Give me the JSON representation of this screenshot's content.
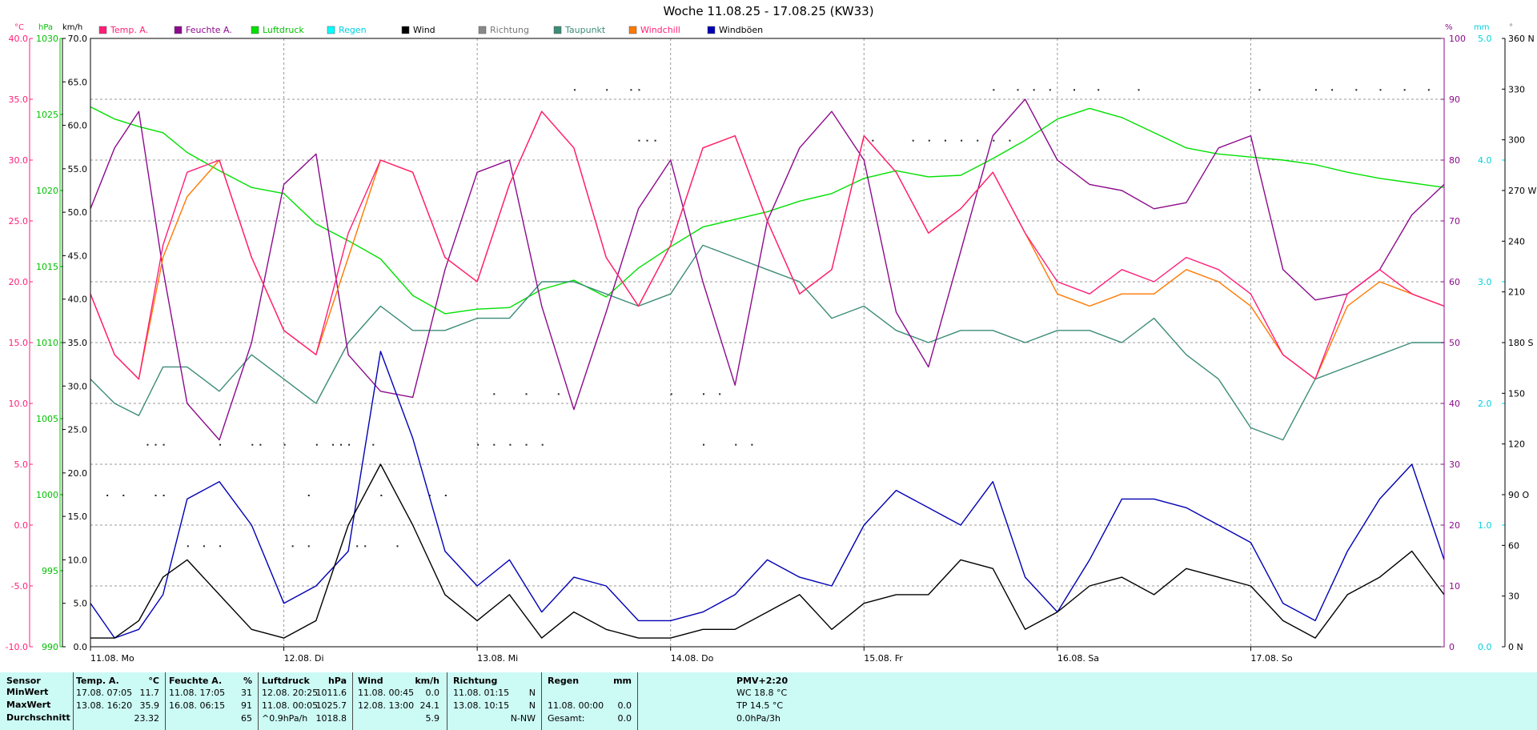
{
  "chart_data": {
    "type": "line",
    "title": "Woche 11.08.25 - 17.08.25 (KW33)",
    "legend_placement": "top",
    "x_labels": [
      "11.08.  Mo",
      "12.08.  Di",
      "13.08.  Mi",
      "14.08.  Do",
      "15.08.  Fr",
      "16.08.  Sa",
      "17.08.  So"
    ],
    "axes": {
      "temp": {
        "unit": "°C",
        "ticks": [
          "40.0",
          "35.0",
          "30.0",
          "25.0",
          "20.0",
          "15.0",
          "10.0",
          "5.0",
          "0.0",
          "-5.0",
          "-10.0"
        ],
        "range": [
          -10,
          40
        ]
      },
      "pressure": {
        "unit": "hPa",
        "ticks": [
          "1030",
          "1025",
          "1020",
          "1015",
          "1010",
          "1005",
          "1000",
          "995",
          "990"
        ],
        "range": [
          990,
          1030
        ]
      },
      "wind": {
        "unit": "km/h",
        "ticks": [
          "70.0",
          "65.0",
          "60.0",
          "55.0",
          "50.0",
          "45.0",
          "40.0",
          "35.0",
          "30.0",
          "25.0",
          "20.0",
          "15.0",
          "10.0",
          "5.0",
          "0.0"
        ],
        "range": [
          0,
          70
        ]
      },
      "humidity": {
        "unit": "%",
        "ticks": [
          "100",
          "90",
          "80",
          "70",
          "60",
          "50",
          "40",
          "30",
          "20",
          "10",
          "0"
        ],
        "range": [
          0,
          100
        ]
      },
      "rain": {
        "unit": "mm",
        "ticks": [
          "5.0",
          "4.0",
          "3.0",
          "2.0",
          "1.0",
          "0.0"
        ],
        "range": [
          0,
          5
        ]
      },
      "direction": {
        "unit": "°",
        "ticks": [
          "360 N",
          "330",
          "300",
          "270 W",
          "240",
          "210",
          "180 S",
          "150",
          "120",
          "90 O",
          "60",
          "30",
          "0 N"
        ],
        "range": [
          0,
          360
        ]
      }
    },
    "series": [
      {
        "name": "Temp. A.",
        "color": "#ff1e78",
        "axis": "temp",
        "hours": [
          0,
          3,
          6,
          9,
          12,
          16,
          20,
          24,
          28,
          32,
          36,
          40,
          44,
          48,
          52,
          56,
          60,
          64,
          68,
          72,
          76,
          80,
          84,
          88,
          92,
          96,
          100,
          104,
          108,
          112,
          116,
          120,
          124,
          128,
          132,
          136,
          140,
          144,
          148,
          152,
          156,
          160,
          164,
          168
        ],
        "values": [
          19,
          14,
          12,
          23,
          29,
          30,
          22,
          16,
          14,
          24,
          30,
          29,
          22,
          20,
          28,
          34,
          31,
          22,
          18,
          23,
          31,
          32,
          25,
          19,
          21,
          32,
          29,
          24,
          26,
          29,
          24,
          20,
          19,
          21,
          20,
          22,
          21,
          19,
          14,
          12,
          19,
          21,
          19,
          18
        ]
      },
      {
        "name": "Feuchte A.",
        "color": "#8c0a8c",
        "axis": "humidity",
        "hours": [
          0,
          3,
          6,
          9,
          12,
          16,
          20,
          24,
          28,
          32,
          36,
          40,
          44,
          48,
          52,
          56,
          60,
          64,
          68,
          72,
          76,
          80,
          84,
          88,
          92,
          96,
          100,
          104,
          108,
          112,
          116,
          120,
          124,
          128,
          132,
          136,
          140,
          144,
          148,
          152,
          156,
          160,
          164,
          168
        ],
        "values": [
          72,
          82,
          88,
          62,
          40,
          34,
          50,
          76,
          81,
          48,
          42,
          41,
          62,
          78,
          80,
          56,
          39,
          55,
          72,
          80,
          60,
          43,
          70,
          82,
          88,
          80,
          55,
          46,
          65,
          84,
          90,
          80,
          76,
          75,
          72,
          73,
          82,
          84,
          62,
          57,
          58,
          62,
          71,
          76
        ]
      },
      {
        "name": "Luftdruck",
        "color": "#00e000",
        "axis": "pressure",
        "hours": [
          0,
          3,
          6,
          9,
          12,
          16,
          20,
          24,
          28,
          32,
          36,
          40,
          44,
          48,
          52,
          56,
          60,
          64,
          68,
          72,
          76,
          80,
          84,
          88,
          92,
          96,
          100,
          104,
          108,
          112,
          116,
          120,
          124,
          128,
          132,
          136,
          140,
          144,
          148,
          152,
          156,
          160,
          164,
          168
        ],
        "values": [
          1025.5,
          1024.7,
          1024.2,
          1023.8,
          1022.5,
          1021.3,
          1020.2,
          1019.8,
          1017.8,
          1016.7,
          1015.5,
          1013.1,
          1011.9,
          1012.2,
          1012.3,
          1013.5,
          1014.1,
          1013.0,
          1014.9,
          1016.3,
          1017.6,
          1018.1,
          1018.6,
          1019.3,
          1019.8,
          1020.8,
          1021.3,
          1020.9,
          1021.0,
          1022.1,
          1023.3,
          1024.7,
          1025.4,
          1024.8,
          1023.8,
          1022.8,
          1022.4,
          1022.2,
          1022.0,
          1021.7,
          1021.2,
          1020.8,
          1020.5,
          1020.2
        ]
      },
      {
        "name": "Taupunkt",
        "color": "#3c8c78",
        "axis": "temp",
        "hours": [
          0,
          3,
          6,
          9,
          12,
          16,
          20,
          24,
          28,
          32,
          36,
          40,
          44,
          48,
          52,
          56,
          60,
          64,
          68,
          72,
          76,
          80,
          84,
          88,
          92,
          96,
          100,
          104,
          108,
          112,
          116,
          120,
          124,
          128,
          132,
          136,
          140,
          144,
          148,
          152,
          156,
          160,
          164,
          168
        ],
        "values": [
          12,
          10,
          9,
          13,
          13,
          11,
          14,
          12,
          10,
          15,
          18,
          16,
          16,
          17,
          17,
          20,
          20,
          19,
          18,
          19,
          23,
          22,
          21,
          20,
          17,
          18,
          16,
          15,
          16,
          16,
          15,
          16,
          16,
          15,
          17,
          14,
          12,
          8,
          7,
          12,
          13,
          14,
          15,
          15
        ]
      },
      {
        "name": "Windchill",
        "color": "#ff7800",
        "axis": "temp",
        "hours": [
          0,
          3,
          6,
          9,
          12,
          16,
          20,
          24,
          28,
          32,
          36,
          40,
          44,
          48,
          52,
          56,
          60,
          64,
          68,
          72,
          76,
          80,
          84,
          88,
          92,
          96,
          100,
          104,
          108,
          112,
          116,
          120,
          124,
          128,
          132,
          136,
          140,
          144,
          148,
          152,
          156,
          160,
          164,
          168
        ],
        "values": [
          19,
          14,
          12,
          22,
          27,
          30,
          22,
          16,
          14,
          22,
          30,
          29,
          22,
          20,
          28,
          34,
          31,
          22,
          18,
          23,
          31,
          32,
          25,
          19,
          21,
          32,
          29,
          24,
          26,
          29,
          24,
          19,
          18,
          19,
          19,
          21,
          20,
          18,
          14,
          12,
          18,
          20,
          19,
          18
        ]
      },
      {
        "name": "Wind",
        "color": "#000000",
        "axis": "wind",
        "hours": [
          0,
          3,
          6,
          9,
          12,
          16,
          20,
          24,
          28,
          32,
          36,
          40,
          44,
          48,
          52,
          56,
          60,
          64,
          68,
          72,
          76,
          80,
          84,
          88,
          92,
          96,
          100,
          104,
          108,
          112,
          116,
          120,
          124,
          128,
          132,
          136,
          140,
          144,
          148,
          152,
          156,
          160,
          164,
          168
        ],
        "values": [
          1,
          1,
          3,
          8,
          10,
          6,
          2,
          1,
          3,
          14,
          21,
          14,
          6,
          3,
          6,
          1,
          4,
          2,
          1,
          1,
          2,
          2,
          4,
          6,
          2,
          5,
          6,
          6,
          10,
          9,
          2,
          4,
          7,
          8,
          6,
          9,
          8,
          7,
          3,
          1,
          6,
          8,
          11,
          6
        ]
      },
      {
        "name": "Windböen",
        "color": "#0000b4",
        "axis": "wind",
        "hours": [
          0,
          3,
          6,
          9,
          12,
          16,
          20,
          24,
          28,
          32,
          36,
          40,
          44,
          48,
          52,
          56,
          60,
          64,
          68,
          72,
          76,
          80,
          84,
          88,
          92,
          96,
          100,
          104,
          108,
          112,
          116,
          120,
          124,
          128,
          132,
          136,
          140,
          144,
          148,
          152,
          156,
          160,
          164,
          168
        ],
        "values": [
          5,
          1,
          2,
          6,
          17,
          19,
          14,
          5,
          7,
          11,
          34,
          24,
          11,
          7,
          10,
          4,
          8,
          7,
          3,
          3,
          4,
          6,
          10,
          8,
          7,
          14,
          18,
          16,
          14,
          19,
          8,
          4,
          10,
          17,
          17,
          16,
          14,
          12,
          5,
          3,
          11,
          17,
          21,
          10
        ]
      }
    ],
    "legend": [
      {
        "name": "Temp. A.",
        "color": "#ff1e78",
        "text_color": "#ff1e78"
      },
      {
        "name": "Feuchte A.",
        "color": "#8c0a8c",
        "text_color": "#8c0a8c"
      },
      {
        "name": "Luftdruck",
        "color": "#00e000",
        "text_color": "#00c000"
      },
      {
        "name": "Regen",
        "color": "#00ffff",
        "text_color": "#00d0e0"
      },
      {
        "name": "Wind",
        "color": "#000000",
        "text_color": "#000000"
      },
      {
        "name": "Richtung",
        "color": "#888888",
        "text_color": "#777777"
      },
      {
        "name": "Taupunkt",
        "color": "#3c8c78",
        "text_color": "#3c8c78"
      },
      {
        "name": "Windchill",
        "color": "#ff7800",
        "text_color": "#ff1e78"
      },
      {
        "name": "Windböen",
        "color": "#0000b4",
        "text_color": "#000000"
      }
    ]
  },
  "footer": {
    "row_labels": [
      "Sensor",
      "MinWert",
      "MaxWert",
      "Durchschnitt"
    ],
    "temp": {
      "header": "Temp. A.",
      "unit": "°C",
      "min_time": "17.08.  07:05",
      "min_val": "11.7",
      "max_time": "13.08.  16:20",
      "max_val": "35.9",
      "avg": "23.32"
    },
    "humidity": {
      "header": "Feuchte A.",
      "unit": "%",
      "min_time": "11.08.  17:05",
      "min_val": "31",
      "max_time": "16.08.  06:15",
      "max_val": "91",
      "avg": "65"
    },
    "pressure": {
      "header": "Luftdruck",
      "unit": "hPa",
      "min_time": "12.08.  20:25",
      "min_val": "1011.6",
      "max_time": "11.08.  00:05",
      "max_val": "1025.7",
      "trend": "^0.9hPa/h",
      "avg": "1018.8"
    },
    "wind": {
      "header": "Wind",
      "unit": "km/h",
      "min_time": "11.08.  00:45",
      "min_val": "0.0",
      "max_time": "12.08.  13:00",
      "max_val": "24.1",
      "avg": "5.9"
    },
    "direction": {
      "header": "Richtung",
      "min_time": "11.08.  01:15",
      "min_val": "N",
      "max_time": "13.08.  10:15",
      "max_val": "N",
      "avg": "N-NW"
    },
    "rain": {
      "header": "Regen",
      "unit": "mm",
      "max_time": "11.08.  00:00",
      "max_val": "0.0",
      "total_label": "Gesamt:",
      "total_val": "0.0"
    },
    "pmv": {
      "header": "PMV+2:20",
      "wc": "WC 18.8 °C",
      "tp": "TP 14.5 °C",
      "pressure_trend": "0.0hPa/3h"
    }
  }
}
